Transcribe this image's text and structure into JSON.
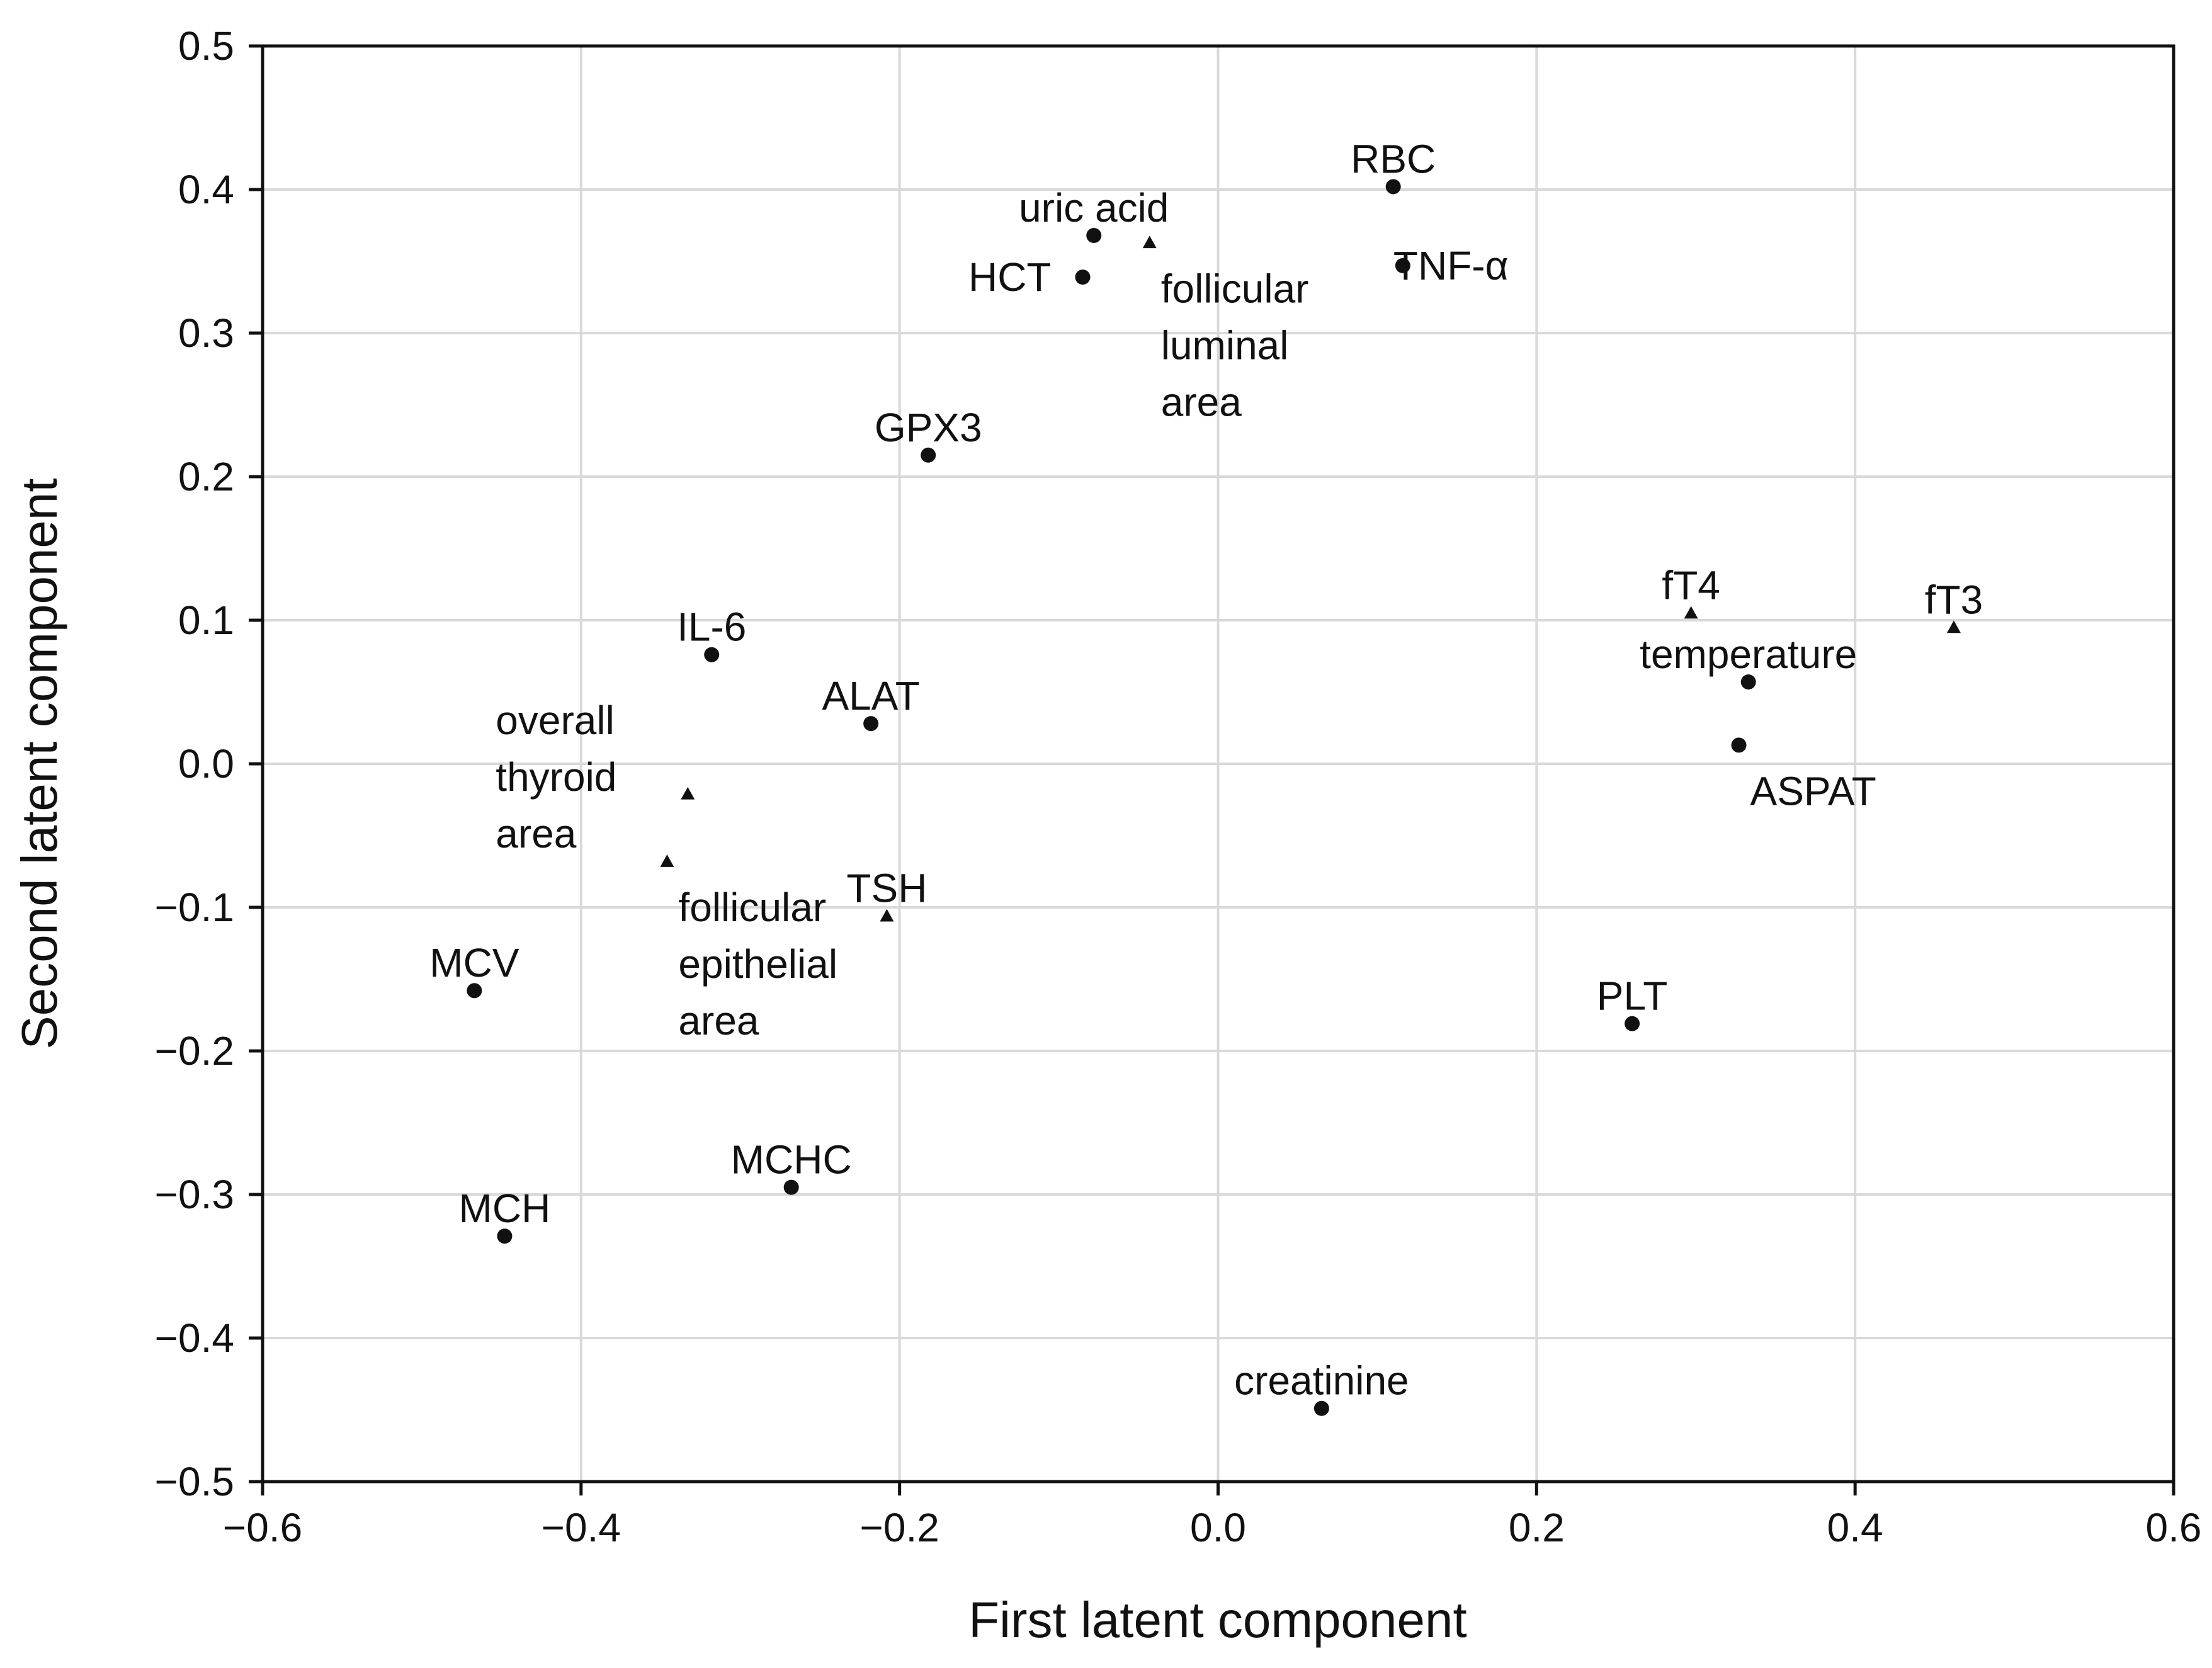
{
  "chart_data": {
    "type": "scatter",
    "xlabel": "First latent component",
    "ylabel": "Second latent component",
    "xlim": [
      -0.6,
      0.6
    ],
    "ylim": [
      -0.5,
      0.5
    ],
    "grid": true,
    "xticks": [
      "−0.6",
      "−0.4",
      "−0.2",
      "0.0",
      "0.2",
      "0.4",
      "0.6"
    ],
    "xtick_values": [
      -0.6,
      -0.4,
      -0.2,
      0.0,
      0.2,
      0.4,
      0.6
    ],
    "yticks": [
      "0.5",
      "0.4",
      "0.3",
      "0.2",
      "0.1",
      "0.0",
      "−0.1",
      "−0.2",
      "−0.3",
      "−0.4",
      "−0.5"
    ],
    "ytick_values": [
      0.5,
      0.4,
      0.3,
      0.2,
      0.1,
      0.0,
      -0.1,
      -0.2,
      -0.3,
      -0.4,
      -0.5
    ],
    "points": [
      {
        "label": [
          "RBC"
        ],
        "x": 0.11,
        "y": 0.402,
        "marker": "circle",
        "label_pos": "above"
      },
      {
        "label": [
          "uric acid"
        ],
        "x": -0.078,
        "y": 0.368,
        "marker": "circle",
        "label_pos": "above"
      },
      {
        "label": [
          "follicular",
          "luminal",
          "area"
        ],
        "x": -0.043,
        "y": 0.363,
        "marker": "triangle",
        "label_pos": "below-right"
      },
      {
        "label": [
          "HCT"
        ],
        "x": -0.085,
        "y": 0.339,
        "marker": "circle",
        "label_pos": "left"
      },
      {
        "label": [
          "TNF-α"
        ],
        "x": 0.116,
        "y": 0.347,
        "marker": "circle",
        "label_pos": "right"
      },
      {
        "label": [
          "GPX3"
        ],
        "x": -0.182,
        "y": 0.215,
        "marker": "circle",
        "label_pos": "above"
      },
      {
        "label": [
          "fT4"
        ],
        "x": 0.297,
        "y": 0.105,
        "marker": "triangle",
        "label_pos": "above"
      },
      {
        "label": [
          "fT3"
        ],
        "x": 0.462,
        "y": 0.095,
        "marker": "triangle",
        "label_pos": "above"
      },
      {
        "label": [
          "temperature"
        ],
        "x": 0.333,
        "y": 0.057,
        "marker": "circle",
        "label_pos": "above"
      },
      {
        "label": [
          "IL-6"
        ],
        "x": -0.318,
        "y": 0.076,
        "marker": "circle",
        "label_pos": "above"
      },
      {
        "label": [
          "ALAT"
        ],
        "x": -0.218,
        "y": 0.028,
        "marker": "circle",
        "label_pos": "above"
      },
      {
        "label": [
          "ASPAT"
        ],
        "x": 0.327,
        "y": 0.013,
        "marker": "circle",
        "label_pos": "below-right"
      },
      {
        "label": [
          "overall",
          "thyroid",
          "area"
        ],
        "x": -0.333,
        "y": -0.021,
        "marker": "triangle",
        "label_pos": "left"
      },
      {
        "label": [
          "follicular",
          "epithelial",
          "area"
        ],
        "x": -0.346,
        "y": -0.068,
        "marker": "triangle",
        "label_pos": "below-right"
      },
      {
        "label": [
          "TSH"
        ],
        "x": -0.208,
        "y": -0.106,
        "marker": "triangle",
        "label_pos": "above"
      },
      {
        "label": [
          "MCV"
        ],
        "x": -0.467,
        "y": -0.158,
        "marker": "circle",
        "label_pos": "above"
      },
      {
        "label": [
          "PLT"
        ],
        "x": 0.26,
        "y": -0.181,
        "marker": "circle",
        "label_pos": "above"
      },
      {
        "label": [
          "MCHC"
        ],
        "x": -0.268,
        "y": -0.295,
        "marker": "circle",
        "label_pos": "above"
      },
      {
        "label": [
          "MCH"
        ],
        "x": -0.448,
        "y": -0.329,
        "marker": "circle",
        "label_pos": "above"
      },
      {
        "label": [
          "creatinine"
        ],
        "x": 0.065,
        "y": -0.449,
        "marker": "circle",
        "label_pos": "above"
      }
    ]
  }
}
